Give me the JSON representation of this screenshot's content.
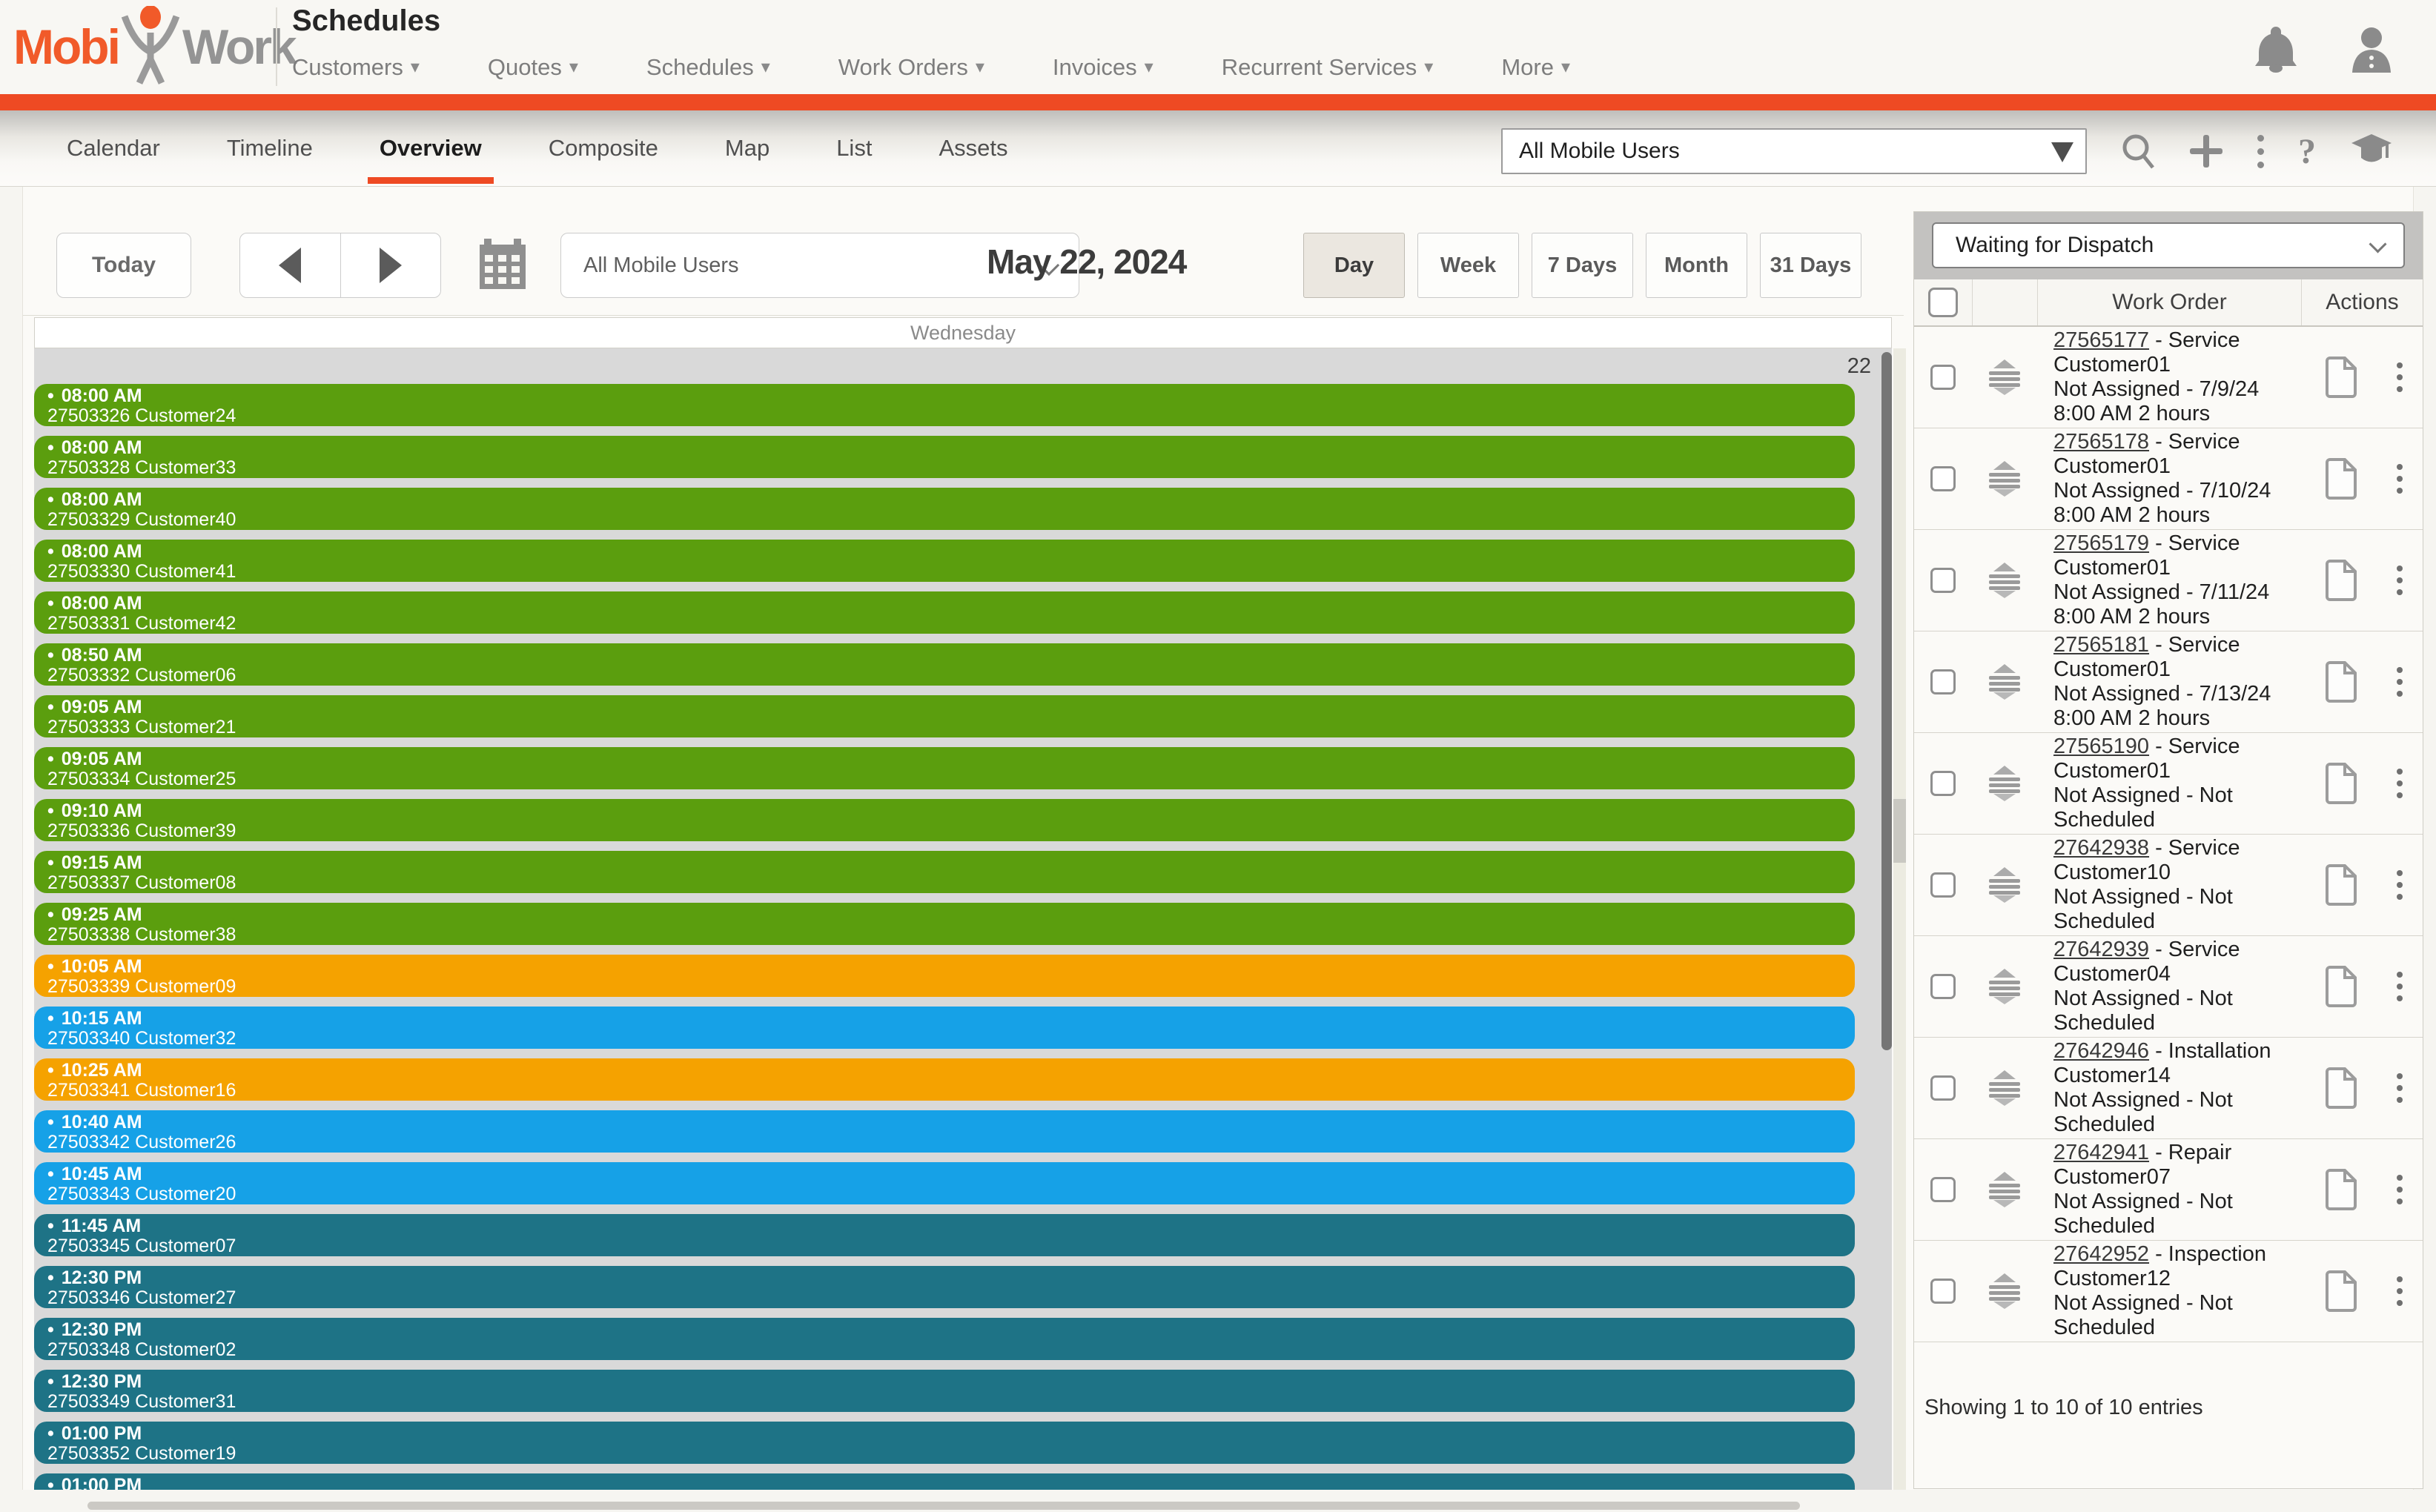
{
  "header": {
    "logo_part1": "Mobi",
    "logo_part2": "Work",
    "title": "Schedules",
    "nav_items": [
      "Customers",
      "Quotes",
      "Schedules",
      "Work Orders",
      "Invoices",
      "Recurrent Services",
      "More"
    ],
    "icons": [
      "notifications-bell",
      "user-profile"
    ]
  },
  "tabs": {
    "items": [
      "Calendar",
      "Timeline",
      "Overview",
      "Composite",
      "Map",
      "List",
      "Assets"
    ],
    "active": "Overview",
    "filter_value": "All Mobile Users",
    "icons": [
      "search",
      "add",
      "more-options",
      "help",
      "training"
    ]
  },
  "toolbar": {
    "today_label": "Today",
    "user_filter": "All Mobile Users",
    "date": "May 22, 2024",
    "views": [
      "Day",
      "Week",
      "7 Days",
      "Month",
      "31 Days"
    ],
    "active_view": "Day"
  },
  "calendar": {
    "day_header": "Wednesday",
    "day_number": "22",
    "events": [
      {
        "time": "08:00 AM",
        "label": "27503326 Customer24",
        "color": "green"
      },
      {
        "time": "08:00 AM",
        "label": "27503328 Customer33",
        "color": "green"
      },
      {
        "time": "08:00 AM",
        "label": "27503329 Customer40",
        "color": "green"
      },
      {
        "time": "08:00 AM",
        "label": "27503330 Customer41",
        "color": "green"
      },
      {
        "time": "08:00 AM",
        "label": "27503331 Customer42",
        "color": "green"
      },
      {
        "time": "08:50 AM",
        "label": "27503332 Customer06",
        "color": "green"
      },
      {
        "time": "09:05 AM",
        "label": "27503333 Customer21",
        "color": "green"
      },
      {
        "time": "09:05 AM",
        "label": "27503334 Customer25",
        "color": "green"
      },
      {
        "time": "09:10 AM",
        "label": "27503336 Customer39",
        "color": "green"
      },
      {
        "time": "09:15 AM",
        "label": "27503337 Customer08",
        "color": "green"
      },
      {
        "time": "09:25 AM",
        "label": "27503338 Customer38",
        "color": "green"
      },
      {
        "time": "10:05 AM",
        "label": "27503339 Customer09",
        "color": "orange"
      },
      {
        "time": "10:15 AM",
        "label": "27503340 Customer32",
        "color": "blue"
      },
      {
        "time": "10:25 AM",
        "label": "27503341 Customer16",
        "color": "orange"
      },
      {
        "time": "10:40 AM",
        "label": "27503342 Customer26",
        "color": "blue"
      },
      {
        "time": "10:45 AM",
        "label": "27503343 Customer20",
        "color": "blue"
      },
      {
        "time": "11:45 AM",
        "label": "27503345 Customer07",
        "color": "teal"
      },
      {
        "time": "12:30 PM",
        "label": "27503346 Customer27",
        "color": "teal"
      },
      {
        "time": "12:30 PM",
        "label": "27503348 Customer02",
        "color": "teal"
      },
      {
        "time": "12:30 PM",
        "label": "27503349 Customer31",
        "color": "teal"
      },
      {
        "time": "01:00 PM",
        "label": "27503352 Customer19",
        "color": "teal"
      },
      {
        "time": "01:00 PM",
        "label": "",
        "color": "teal"
      }
    ]
  },
  "panel": {
    "filter_value": "Waiting for Dispatch",
    "columns": {
      "work_order": "Work Order",
      "actions": "Actions"
    },
    "rows": [
      {
        "id": "27565177",
        "type": "Service",
        "lines": [
          "Customer01",
          "Not Assigned - 7/9/24",
          "8:00 AM 2 hours"
        ]
      },
      {
        "id": "27565178",
        "type": "Service",
        "lines": [
          "Customer01",
          "Not Assigned - 7/10/24",
          "8:00 AM 2 hours"
        ]
      },
      {
        "id": "27565179",
        "type": "Service",
        "lines": [
          "Customer01",
          "Not Assigned - 7/11/24",
          "8:00 AM 2 hours"
        ]
      },
      {
        "id": "27565181",
        "type": "Service",
        "lines": [
          "Customer01",
          "Not Assigned - 7/13/24",
          "8:00 AM 2 hours"
        ]
      },
      {
        "id": "27565190",
        "type": "Service",
        "lines": [
          "Customer01",
          "Not Assigned - Not",
          "Scheduled"
        ]
      },
      {
        "id": "27642938",
        "type": "Service",
        "lines": [
          "Customer10",
          "Not Assigned - Not",
          "Scheduled"
        ]
      },
      {
        "id": "27642939",
        "type": "Service",
        "lines": [
          "Customer04",
          "Not Assigned - Not",
          "Scheduled"
        ]
      },
      {
        "id": "27642946",
        "type": "Installation",
        "lines": [
          "Customer14",
          "Not Assigned - Not",
          "Scheduled"
        ]
      },
      {
        "id": "27642941",
        "type": "Repair",
        "lines": [
          "Customer07",
          "Not Assigned - Not",
          "Scheduled"
        ]
      },
      {
        "id": "27642952",
        "type": "Inspection",
        "lines": [
          "Customer12",
          "Not Assigned - Not",
          "Scheduled"
        ]
      }
    ],
    "footer": "Showing 1 to 10 of 10 entries"
  },
  "colors": {
    "accent": "#ee4a23",
    "logo_orange": "#f15a29",
    "logo_gray": "#949494",
    "events": {
      "green": "#5b9e0e",
      "orange": "#f5a200",
      "blue": "#16a1e7",
      "teal": "#1e7386"
    }
  }
}
